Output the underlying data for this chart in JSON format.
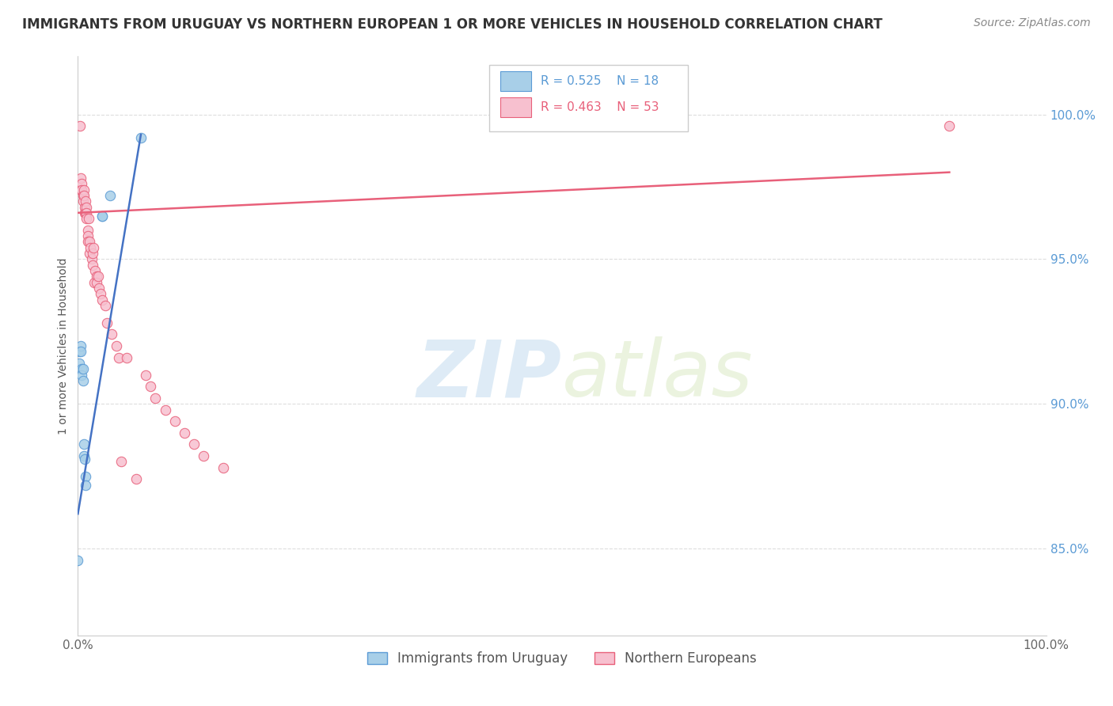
{
  "title": "IMMIGRANTS FROM URUGUAY VS NORTHERN EUROPEAN 1 OR MORE VEHICLES IN HOUSEHOLD CORRELATION CHART",
  "source": "Source: ZipAtlas.com",
  "ylabel": "1 or more Vehicles in Household",
  "ytick_labels": [
    "85.0%",
    "90.0%",
    "95.0%",
    "100.0%"
  ],
  "ytick_values": [
    85.0,
    90.0,
    95.0,
    100.0
  ],
  "xlim": [
    0.0,
    100.0
  ],
  "ylim": [
    82.0,
    102.0
  ],
  "xtick_positions": [
    0.0,
    100.0
  ],
  "xtick_labels": [
    "0.0%",
    "100.0%"
  ],
  "watermark_zip": "ZIP",
  "watermark_atlas": "atlas",
  "legend_blue_label": "Immigrants from Uruguay",
  "legend_pink_label": "Northern Europeans",
  "R_blue": 0.525,
  "N_blue": 18,
  "R_pink": 0.463,
  "N_pink": 53,
  "blue_color": "#a8cfe8",
  "pink_color": "#f7c0cf",
  "blue_edge_color": "#5b9bd5",
  "pink_edge_color": "#e8607a",
  "blue_line_color": "#4472c4",
  "pink_line_color": "#e8607a",
  "blue_scatter_x": [
    0.0,
    0.1,
    0.1,
    0.3,
    0.3,
    0.4,
    0.4,
    0.5,
    0.5,
    0.6,
    0.6,
    0.7,
    0.8,
    0.8,
    2.5,
    2.5,
    3.3,
    6.5
  ],
  "blue_scatter_y": [
    84.6,
    91.8,
    91.4,
    92.0,
    91.8,
    91.2,
    91.0,
    91.2,
    90.8,
    88.6,
    88.2,
    88.1,
    87.5,
    87.2,
    96.5,
    96.5,
    97.2,
    99.2
  ],
  "blue_line_x": [
    0.0,
    6.5
  ],
  "blue_line_y": [
    86.2,
    99.3
  ],
  "pink_scatter_x": [
    0.2,
    0.3,
    0.3,
    0.4,
    0.4,
    0.5,
    0.5,
    0.6,
    0.6,
    0.7,
    0.7,
    0.8,
    0.8,
    0.9,
    0.9,
    0.9,
    1.0,
    1.0,
    1.0,
    1.1,
    1.2,
    1.2,
    1.3,
    1.4,
    1.5,
    1.5,
    1.6,
    1.7,
    1.8,
    1.9,
    1.9,
    2.1,
    2.2,
    2.3,
    2.5,
    2.8,
    3.0,
    3.5,
    4.0,
    4.2,
    4.5,
    5.0,
    6.0,
    7.0,
    7.5,
    8.0,
    9.0,
    10.0,
    11.0,
    12.0,
    13.0,
    15.0,
    90.0
  ],
  "pink_scatter_y": [
    99.6,
    97.8,
    97.4,
    97.6,
    97.4,
    97.2,
    97.0,
    97.4,
    97.2,
    96.8,
    96.6,
    97.0,
    96.6,
    96.8,
    96.6,
    96.4,
    96.0,
    95.8,
    95.6,
    96.4,
    95.6,
    95.2,
    95.4,
    95.0,
    95.2,
    94.8,
    95.4,
    94.2,
    94.6,
    94.4,
    94.2,
    94.4,
    94.0,
    93.8,
    93.6,
    93.4,
    92.8,
    92.4,
    92.0,
    91.6,
    88.0,
    91.6,
    87.4,
    91.0,
    90.6,
    90.2,
    89.8,
    89.4,
    89.0,
    88.6,
    88.2,
    87.8,
    99.6
  ],
  "pink_line_x": [
    0.0,
    90.0
  ],
  "pink_line_y": [
    96.6,
    98.0
  ],
  "marker_size": 80,
  "grid_color": "#dddddd",
  "background_color": "#ffffff",
  "legend_box_facecolor": "#ffffff",
  "legend_box_edgecolor": "#cccccc",
  "title_fontsize": 12,
  "source_fontsize": 10,
  "tick_label_fontsize": 11,
  "ylabel_fontsize": 10,
  "legend_text_fontsize": 11
}
